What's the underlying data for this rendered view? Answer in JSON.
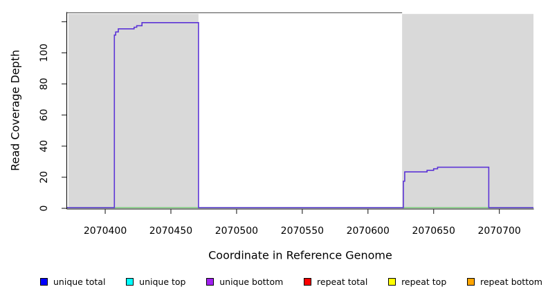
{
  "chart_data": {
    "type": "line",
    "title": "",
    "xlabel": "Coordinate in Reference Genome",
    "ylabel": "Read Coverage Depth",
    "xlim": [
      2070371,
      2070726
    ],
    "ylim": [
      0,
      126
    ],
    "grid": "off",
    "legend_position": "bottom",
    "background_color": "#ffffff",
    "shaded_region_color": "#d9d9d9",
    "axis_color": "#000000",
    "tick_color": "#333333",
    "x_ticks": [
      {
        "value": 2070400,
        "label": "2070400"
      },
      {
        "value": 2070450,
        "label": "2070450"
      },
      {
        "value": 2070500,
        "label": "2070500"
      },
      {
        "value": 2070550,
        "label": "2070550"
      },
      {
        "value": 2070600,
        "label": "2070600"
      },
      {
        "value": 2070650,
        "label": "2070650"
      },
      {
        "value": 2070700,
        "label": "2070700"
      }
    ],
    "y_ticks": [
      {
        "value": 0,
        "label": "0"
      },
      {
        "value": 20,
        "label": "20"
      },
      {
        "value": 40,
        "label": "40"
      },
      {
        "value": 60,
        "label": "60"
      },
      {
        "value": 80,
        "label": "80"
      },
      {
        "value": 100,
        "label": "100"
      },
      {
        "value": 120,
        "label": ""
      }
    ],
    "shaded_regions": [
      {
        "name": "left-shaded-region",
        "x0": 2070372,
        "x1": 2070471,
        "y0": 0,
        "y1": 125
      },
      {
        "name": "right-shaded-region",
        "x0": 2070626,
        "x1": 2070726,
        "y0": 0,
        "y1": 125
      }
    ],
    "top_border": {
      "x0": 2070371,
      "x1": 2070626,
      "color": "#666666"
    },
    "series": [
      {
        "name": "zero-baseline",
        "color": "#7ccd7c",
        "width": 1.4,
        "points": [
          [
            2070371,
            0
          ],
          [
            2070726,
            0
          ]
        ]
      },
      {
        "name": "unique-coverage",
        "color": "#5b33d6",
        "width": 1.6,
        "points": [
          [
            2070371,
            0
          ],
          [
            2070407,
            0
          ],
          [
            2070407,
            111
          ],
          [
            2070408,
            111
          ],
          [
            2070408,
            113
          ],
          [
            2070410,
            113
          ],
          [
            2070410,
            115
          ],
          [
            2070422,
            115
          ],
          [
            2070422,
            116
          ],
          [
            2070424,
            116
          ],
          [
            2070424,
            117
          ],
          [
            2070428,
            117
          ],
          [
            2070428,
            119
          ],
          [
            2070471,
            119
          ],
          [
            2070471,
            0
          ],
          [
            2070627,
            0
          ],
          [
            2070627,
            17
          ],
          [
            2070628,
            17
          ],
          [
            2070628,
            23
          ],
          [
            2070645,
            23
          ],
          [
            2070645,
            24
          ],
          [
            2070650,
            24
          ],
          [
            2070650,
            25
          ],
          [
            2070653,
            25
          ],
          [
            2070653,
            26
          ],
          [
            2070692,
            26
          ],
          [
            2070692,
            0
          ],
          [
            2070726,
            0
          ]
        ]
      }
    ],
    "legend": [
      {
        "label": "unique total",
        "color": "#0000ff"
      },
      {
        "label": "unique top",
        "color": "#00ffff"
      },
      {
        "label": "unique bottom",
        "color": "#a020f0"
      },
      {
        "label": "repeat total",
        "color": "#ff0000"
      },
      {
        "label": "repeat top",
        "color": "#ffff00"
      },
      {
        "label": "repeat bottom",
        "color": "#ffa500"
      }
    ]
  }
}
